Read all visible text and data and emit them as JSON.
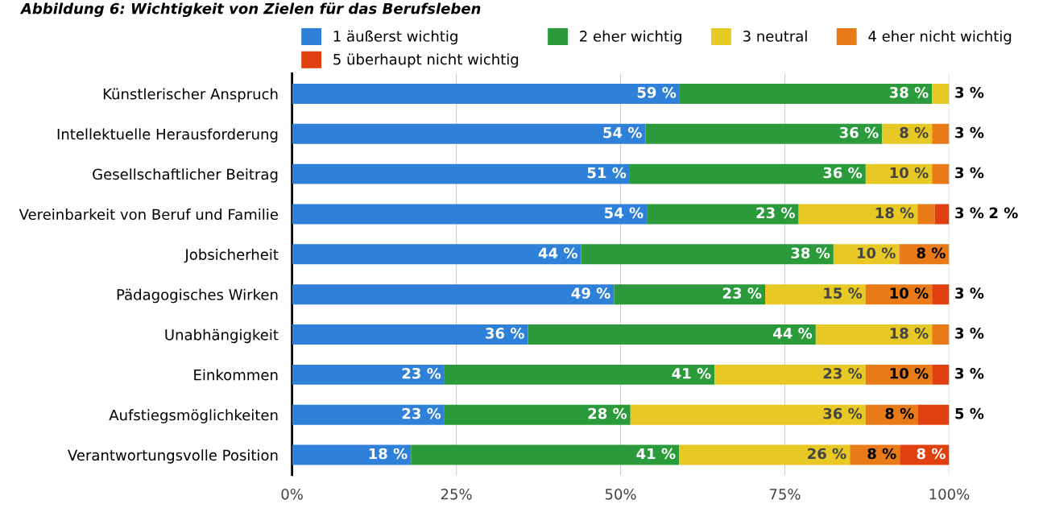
{
  "chart_data": {
    "type": "bar",
    "orientation": "horizontal",
    "stacked": true,
    "title": "Abbildung 6: Wichtigkeit von Zielen für das Berufsleben",
    "categories": [
      "Künstlerischer Anspruch",
      "Intellektuelle Herausforderung",
      "Gesellschaftlicher Beitrag",
      "Vereinbarkeit von Beruf und Familie",
      "Jobsicherheit",
      "Pädagogisches Wirken",
      "Unabhängigkeit",
      "Einkommen",
      "Aufstiegsmöglichkeiten",
      "Verantwortungsvolle Position"
    ],
    "series": [
      {
        "name": "1 äußerst wichtig",
        "color": "#2f80d8",
        "values": [
          59.0,
          53.8,
          51.4,
          54.0,
          44.0,
          49.0,
          35.9,
          23.2,
          23.2,
          18.1
        ],
        "value_labels": [
          "59 %",
          "54 %",
          "51 %",
          "54 %",
          "44 %",
          "49 %",
          "36 %",
          "23 %",
          "23 %",
          "18 %"
        ]
      },
      {
        "name": "2 eher wichtig",
        "color": "#2a9a3a",
        "values": [
          38.4,
          36.0,
          35.9,
          23.1,
          38.4,
          23.0,
          43.8,
          41.1,
          28.3,
          40.8
        ],
        "value_labels": [
          "38 %",
          "36 %",
          "36 %",
          "23 %",
          "38 %",
          "23 %",
          "44 %",
          "41 %",
          "28 %",
          "41 %"
        ]
      },
      {
        "name": "3 neutral",
        "color": "#e8c825",
        "values": [
          2.6,
          7.6,
          10.1,
          18.1,
          10.0,
          15.3,
          17.7,
          23.0,
          35.8,
          26.0
        ],
        "value_labels": [
          "3 %",
          "8 %",
          "10 %",
          "18 %",
          "10 %",
          "15 %",
          "18 %",
          "23 %",
          "36 %",
          "26 %"
        ]
      },
      {
        "name": "4 eher nicht wichtig",
        "color": "#e87a18",
        "values": [
          null,
          2.6,
          2.6,
          2.6,
          7.6,
          10.1,
          2.6,
          10.1,
          7.9,
          7.6
        ],
        "value_labels": [
          null,
          "3 %",
          "3 %",
          "3 %",
          "8 %",
          "10 %",
          "3 %",
          "10 %",
          "8 %",
          "8 %"
        ]
      },
      {
        "name": "5 überhaupt nicht wichtig",
        "color": "#e0400f",
        "values": [
          null,
          null,
          null,
          2.2,
          null,
          2.6,
          null,
          2.6,
          4.8,
          7.5
        ],
        "value_labels": [
          null,
          null,
          null,
          "2 %",
          null,
          "3 %",
          null,
          "3 %",
          "5 %",
          "8 %"
        ]
      }
    ],
    "xlim": [
      0,
      100
    ],
    "xticks": [
      {
        "value": 0,
        "label": "0%"
      },
      {
        "value": 25,
        "label": "25%"
      },
      {
        "value": 50,
        "label": "50%"
      },
      {
        "value": 75,
        "label": "75%"
      },
      {
        "value": 100,
        "label": "100%"
      }
    ],
    "grid": "x",
    "legend": "top"
  }
}
